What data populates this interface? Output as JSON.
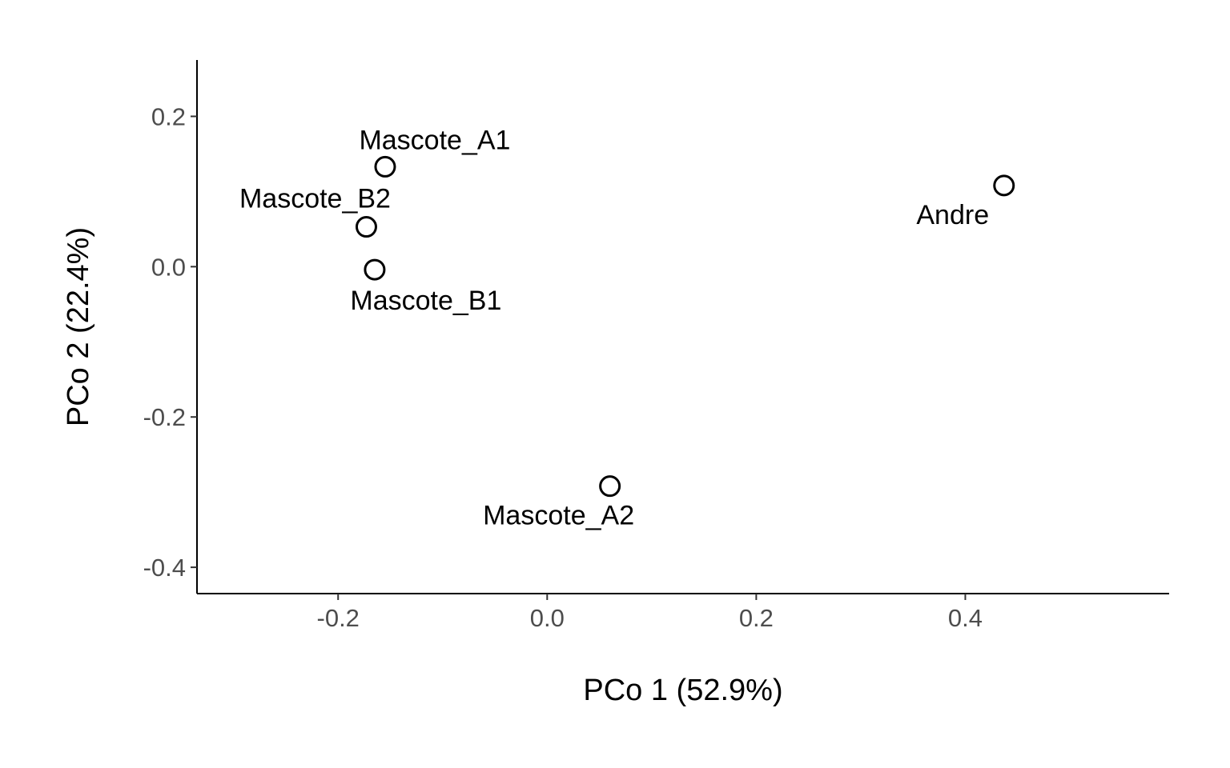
{
  "chart_data": {
    "type": "scatter",
    "title": "",
    "xlabel": "PCo 1 (52.9%)",
    "ylabel": "PCo 2 (22.4%)",
    "xlim": [
      -0.335,
      0.595
    ],
    "ylim": [
      -0.435,
      0.275
    ],
    "xticks": [
      -0.2,
      0.0,
      0.2,
      0.4
    ],
    "yticks": [
      -0.4,
      -0.2,
      0.0,
      0.2
    ],
    "xtick_labels": [
      "-0.2",
      "0.0",
      "0.2",
      "0.4"
    ],
    "ytick_labels": [
      "-0.4",
      "-0.2",
      "0.0",
      "0.2"
    ],
    "grid": false,
    "points": [
      {
        "label": "Mascote_A1",
        "x": -0.155,
        "y": 0.133
      },
      {
        "label": "Mascote_B2",
        "x": -0.173,
        "y": 0.053
      },
      {
        "label": "Mascote_B1",
        "x": -0.165,
        "y": -0.004
      },
      {
        "label": "Andre",
        "x": 0.437,
        "y": 0.108
      },
      {
        "label": "Mascote_A2",
        "x": 0.06,
        "y": -0.292
      }
    ]
  }
}
